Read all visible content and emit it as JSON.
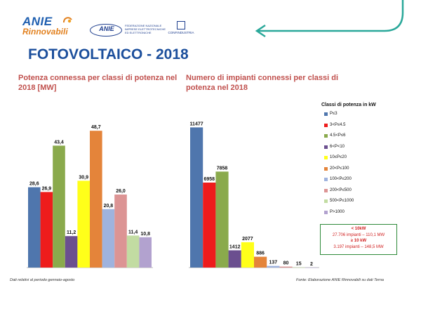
{
  "header": {
    "brand_line1": "ANIE",
    "brand_line2": "Rinnovabili",
    "federation_acronym": "ANIE",
    "federation_name": "FEDERAZIONE NAZIONALE IMPRESE ELETTROTECNICHE ED ELETTRONICHE",
    "confindustria": "CONFINDUSTRIA",
    "title": "FOTOVOLTAICO - 2018"
  },
  "colors": {
    "title_blue": "#1c4f9c",
    "chart_title_red": "#c0504d",
    "arrow_teal": "#2aa89a"
  },
  "legend": {
    "title": "Classi di potenza in kW",
    "items": [
      {
        "label": "P≤3",
        "color": "#4f76ad"
      },
      {
        "label": "3<P≤4.5",
        "color": "#ee1c1c"
      },
      {
        "label": "4.5<P≤6",
        "color": "#8aaa4c"
      },
      {
        "label": "6<P<10",
        "color": "#6b4f8f"
      },
      {
        "label": "10≤P≤20",
        "color": "#ffff1a"
      },
      {
        "label": "20<P≤100",
        "color": "#e4843a"
      },
      {
        "label": "100<P≤200",
        "color": "#9fb3de"
      },
      {
        "label": "200<P≤500",
        "color": "#dc9494"
      },
      {
        "label": "500<P≤1000",
        "color": "#c2dca2"
      },
      {
        "label": "P>1000",
        "color": "#b2a2cf"
      }
    ]
  },
  "note": {
    "line1": "< 10kW",
    "line2": "27.706 impianti – 110,1 MW",
    "line3": "≥ 10 kW",
    "line4": "3.197 impianti – 148,5 MW"
  },
  "footnotes": {
    "left": "Dati relativi al periodo gennaio-agosto",
    "right": "Fonte: Elaborazione ANIE Rinnovabili su dati Terna"
  },
  "chart_data": [
    {
      "type": "bar",
      "title": "Potenza connessa per classi di potenza nel 2018 [MW]",
      "categories": [
        "P≤3",
        "3<P≤4.5",
        "4.5<P≤6",
        "6<P<10",
        "10≤P≤20",
        "20<P≤100",
        "100<P≤200",
        "200<P≤500",
        "500<P≤1000",
        "P>1000"
      ],
      "values": [
        28.6,
        26.9,
        43.4,
        11.2,
        30.9,
        48.7,
        20.8,
        26.0,
        11.4,
        10.8
      ],
      "data_labels": [
        "28,6",
        "26,9",
        "43,4",
        "11,2",
        "30,9",
        "48,7",
        "20,8",
        "26,0",
        "11,4",
        "10,8"
      ],
      "ylim": [
        0,
        50
      ],
      "xlabel": "",
      "ylabel": ""
    },
    {
      "type": "bar",
      "title": "Numero di impianti connessi per classi di potenza nel 2018",
      "categories": [
        "P≤3",
        "3<P≤4.5",
        "4.5<P≤6",
        "6<P<10",
        "10≤P≤20",
        "20<P≤100",
        "100<P≤200",
        "200<P≤500",
        "500<P≤1000",
        "P>1000"
      ],
      "values": [
        11477,
        6958,
        7858,
        1412,
        2077,
        886,
        137,
        80,
        15,
        2
      ],
      "data_labels": [
        "11477",
        "6958",
        "7858",
        "1412",
        "2077",
        "886",
        "137",
        "80",
        "15",
        "2"
      ],
      "ylim": [
        0,
        11500
      ],
      "xlabel": "",
      "ylabel": ""
    }
  ]
}
